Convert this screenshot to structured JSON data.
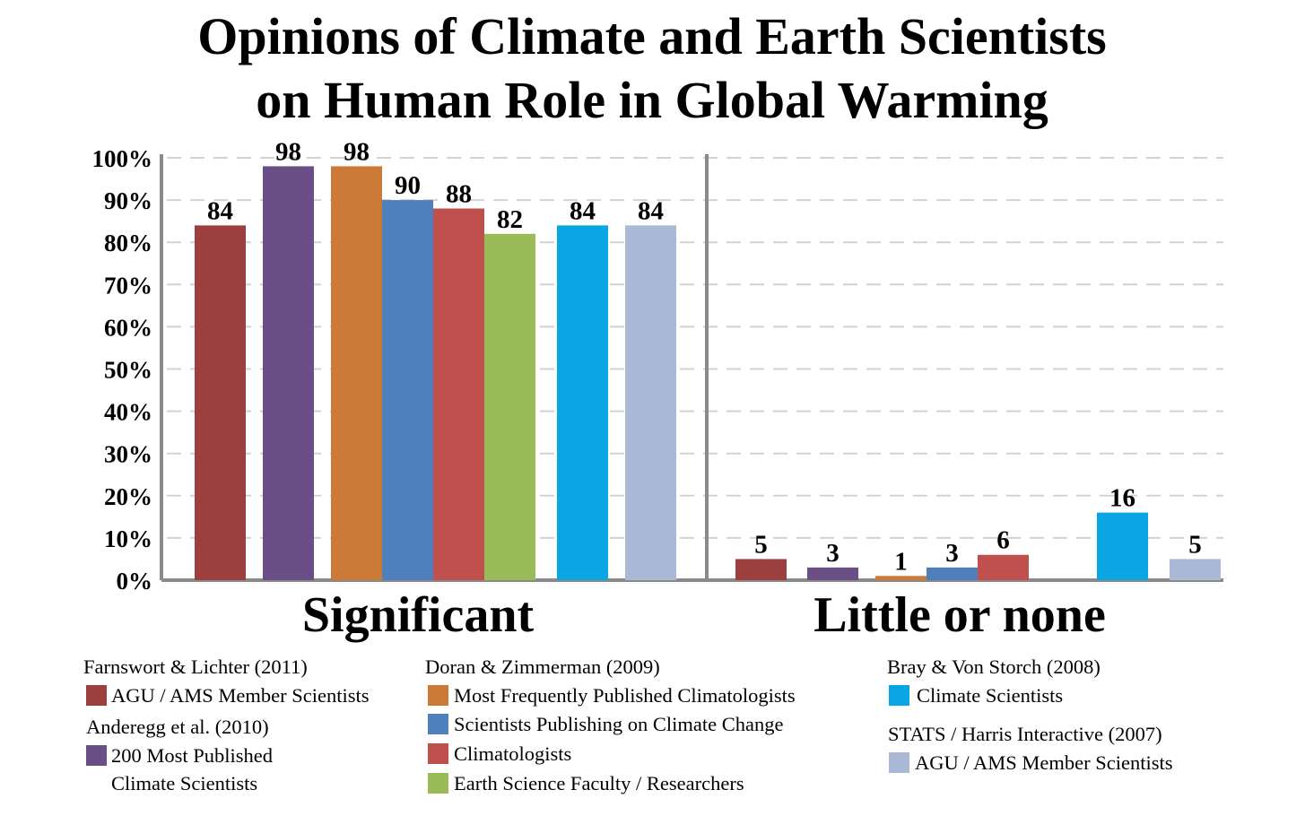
{
  "chart_data": {
    "type": "bar",
    "title_lines": [
      "Opinions of Climate and Earth Scientists",
      "on Human Role in Global Warming"
    ],
    "title": "Opinions of Climate and Earth Scientists on Human Role in Global Warming",
    "ylabel": "",
    "ylim": [
      0,
      100
    ],
    "y_ticks": [
      0,
      10,
      20,
      30,
      40,
      50,
      60,
      70,
      80,
      90,
      100
    ],
    "y_tick_labels": [
      "0%",
      "10%",
      "20%",
      "30%",
      "40%",
      "50%",
      "60%",
      "70%",
      "80%",
      "90%",
      "100%"
    ],
    "grid": true,
    "categories": [
      "Significant",
      "Little or none"
    ],
    "series": [
      {
        "name": "AGU / AMS Member Scientists",
        "source": "Farnswort & Lichter (2011)",
        "color": "#9c3f3f",
        "values": [
          84,
          5
        ]
      },
      {
        "name": "200 Most Published Climate Scientists",
        "source": "Anderegg et al. (2010)",
        "color": "#6a4e86",
        "values": [
          98,
          3
        ]
      },
      {
        "name": "Most Frequently Published Climatologists",
        "source": "Doran & Zimmerman (2009)",
        "color": "#cc7a38",
        "values": [
          98,
          1
        ]
      },
      {
        "name": "Scientists Publishing on Climate Change",
        "source": "Doran & Zimmerman (2009)",
        "color": "#4f80bb",
        "values": [
          90,
          3
        ]
      },
      {
        "name": "Climatologists",
        "source": "Doran & Zimmerman (2009)",
        "color": "#c0504d",
        "values": [
          88,
          6
        ]
      },
      {
        "name": "Earth Science Faculty / Researchers",
        "source": "Doran & Zimmerman (2009)",
        "color": "#9bbb59",
        "values": [
          82,
          null
        ]
      },
      {
        "name": "Climate Scientists",
        "source": "Bray & Von Storch (2008)",
        "color": "#0aa6e4",
        "values": [
          84,
          16
        ]
      },
      {
        "name": "AGU / AMS Member Scientists",
        "source": "STATS / Harris Interactive (2007)",
        "color": "#a9b9d6",
        "values": [
          84,
          5
        ]
      }
    ],
    "legend_placement": "bottom",
    "legend_groups": [
      {
        "source": "Farnswort & Lichter (2011)",
        "items": [
          {
            "series": 0,
            "lines": [
              "AGU / AMS Member Scientists"
            ]
          }
        ]
      },
      {
        "source": "Anderegg et al. (2010)",
        "items": [
          {
            "series": 1,
            "lines": [
              "200 Most Published",
              "Climate Scientists"
            ]
          }
        ]
      },
      {
        "source": "Doran & Zimmerman (2009)",
        "items": [
          {
            "series": 2,
            "lines": [
              "Most Frequently Published Climatologists"
            ]
          },
          {
            "series": 3,
            "lines": [
              "Scientists Publishing on Climate Change"
            ]
          },
          {
            "series": 4,
            "lines": [
              "Climatologists"
            ]
          },
          {
            "series": 5,
            "lines": [
              "Earth Science Faculty / Researchers"
            ]
          }
        ]
      },
      {
        "source": "Bray & Von Storch (2008)",
        "items": [
          {
            "series": 6,
            "lines": [
              "Climate Scientists"
            ]
          }
        ]
      },
      {
        "source": "STATS / Harris Interactive (2007)",
        "items": [
          {
            "series": 7,
            "lines": [
              "AGU / AMS Member Scientists"
            ]
          }
        ]
      }
    ]
  }
}
